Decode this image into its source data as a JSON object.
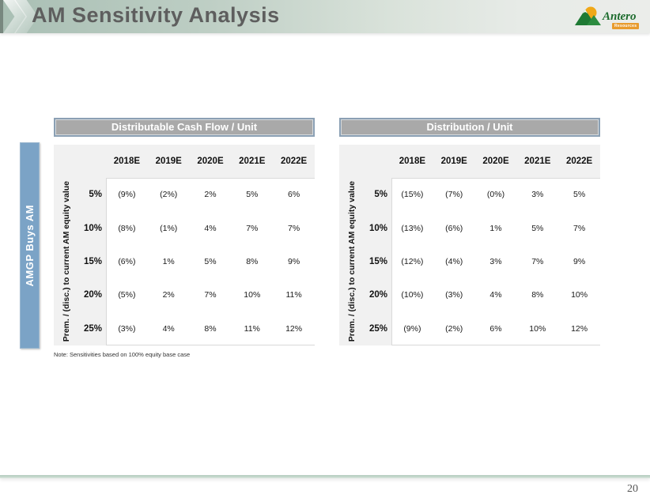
{
  "slide": {
    "title": "AM Sensitivity Analysis",
    "page_number": "20"
  },
  "logo": {
    "name": "Antero",
    "subtext": "Resources"
  },
  "side_label": "AMGP Buys AM",
  "note": "Note: Sensitivities based on 100% equity base case",
  "tables": [
    {
      "title": "Distributable Cash Flow / Unit",
      "axis_label": "Prem. / (disc.) to current AM equity value",
      "columns": [
        "2018E",
        "2019E",
        "2020E",
        "2021E",
        "2022E"
      ],
      "rows": [
        {
          "label": "5%",
          "values": [
            "(9%)",
            "(2%)",
            "2%",
            "5%",
            "6%"
          ]
        },
        {
          "label": "10%",
          "values": [
            "(8%)",
            "(1%)",
            "4%",
            "7%",
            "7%"
          ]
        },
        {
          "label": "15%",
          "values": [
            "(6%)",
            "1%",
            "5%",
            "8%",
            "9%"
          ]
        },
        {
          "label": "20%",
          "values": [
            "(5%)",
            "2%",
            "7%",
            "10%",
            "11%"
          ]
        },
        {
          "label": "25%",
          "values": [
            "(3%)",
            "4%",
            "8%",
            "11%",
            "12%"
          ]
        }
      ]
    },
    {
      "title": "Distribution / Unit",
      "axis_label": "Prem. / (disc.) to current AM equity value",
      "columns": [
        "2018E",
        "2019E",
        "2020E",
        "2021E",
        "2022E"
      ],
      "rows": [
        {
          "label": "5%",
          "values": [
            "(15%)",
            "(7%)",
            "(0%)",
            "3%",
            "5%"
          ]
        },
        {
          "label": "10%",
          "values": [
            "(13%)",
            "(6%)",
            "1%",
            "5%",
            "7%"
          ]
        },
        {
          "label": "15%",
          "values": [
            "(12%)",
            "(4%)",
            "3%",
            "7%",
            "9%"
          ]
        },
        {
          "label": "20%",
          "values": [
            "(10%)",
            "(3%)",
            "4%",
            "8%",
            "10%"
          ]
        },
        {
          "label": "25%",
          "values": [
            "(9%)",
            "(2%)",
            "6%",
            "10%",
            "12%"
          ]
        }
      ]
    }
  ],
  "colors": {
    "header_gradient_start": "#a9bfb4",
    "header_gradient_end": "#ebedea",
    "title_bar_fill": "#a9a9a9",
    "title_bar_border": "#8ba0b4",
    "side_bar_fill": "#7ba3c6",
    "logo_green": "#1e7a34",
    "logo_sun": "#f0a818",
    "logo_orange": "#e89b2d"
  }
}
